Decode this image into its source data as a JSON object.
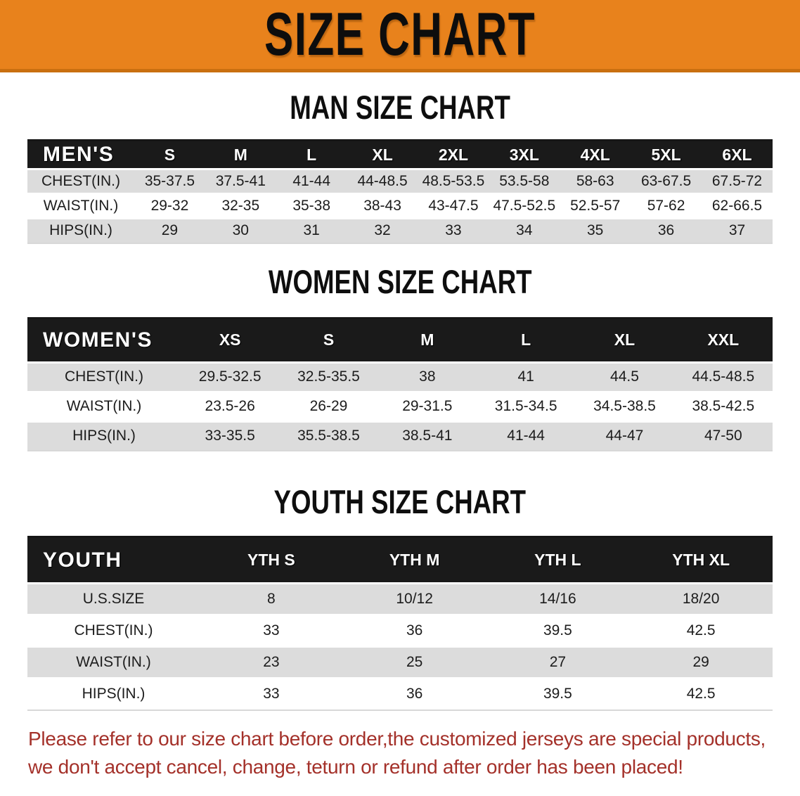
{
  "banner": {
    "title": "SIZE CHART"
  },
  "colors": {
    "banner_bg": "#E8821C",
    "banner_edge": "#C96F10",
    "header_bg": "#1A1A1A",
    "row_gray": "#DCDCDC",
    "text_dark": "#1C1C1C",
    "disclaimer_red": "#A4312A"
  },
  "sections": {
    "men": {
      "heading": "MAN SIZE CHART",
      "table": {
        "label": "MEN'S",
        "sizes": [
          "S",
          "M",
          "L",
          "XL",
          "2XL",
          "3XL",
          "4XL",
          "5XL",
          "6XL"
        ],
        "rows": [
          {
            "label": "CHEST(IN.)",
            "values": [
              "35-37.5",
              "37.5-41",
              "41-44",
              "44-48.5",
              "48.5-53.5",
              "53.5-58",
              "58-63",
              "63-67.5",
              "67.5-72"
            ]
          },
          {
            "label": "WAIST(IN.)",
            "values": [
              "29-32",
              "32-35",
              "35-38",
              "38-43",
              "43-47.5",
              "47.5-52.5",
              "52.5-57",
              "57-62",
              "62-66.5"
            ]
          },
          {
            "label": "HIPS(IN.)",
            "values": [
              "29",
              "30",
              "31",
              "32",
              "33",
              "34",
              "35",
              "36",
              "37"
            ]
          }
        ]
      }
    },
    "women": {
      "heading": "WOMEN SIZE CHART",
      "table": {
        "label": "WOMEN'S",
        "sizes": [
          "XS",
          "S",
          "M",
          "L",
          "XL",
          "XXL"
        ],
        "rows": [
          {
            "label": "CHEST(IN.)",
            "values": [
              "29.5-32.5",
              "32.5-35.5",
              "38",
              "41",
              "44.5",
              "44.5-48.5"
            ]
          },
          {
            "label": "WAIST(IN.)",
            "values": [
              "23.5-26",
              "26-29",
              "29-31.5",
              "31.5-34.5",
              "34.5-38.5",
              "38.5-42.5"
            ]
          },
          {
            "label": "HIPS(IN.)",
            "values": [
              "33-35.5",
              "35.5-38.5",
              "38.5-41",
              "41-44",
              "44-47",
              "47-50"
            ]
          }
        ]
      }
    },
    "youth": {
      "heading": "YOUTH SIZE CHART",
      "table": {
        "label": "YOUTH",
        "sizes": [
          "YTH S",
          "YTH M",
          "YTH L",
          "YTH XL"
        ],
        "rows": [
          {
            "label": "U.S.SIZE",
            "values": [
              "8",
              "10/12",
              "14/16",
              "18/20"
            ]
          },
          {
            "label": "CHEST(IN.)",
            "values": [
              "33",
              "36",
              "39.5",
              "42.5"
            ]
          },
          {
            "label": "WAIST(IN.)",
            "values": [
              "23",
              "25",
              "27",
              "29"
            ]
          },
          {
            "label": "HIPS(IN.)",
            "values": [
              "33",
              "36",
              "39.5",
              "42.5"
            ]
          }
        ]
      }
    }
  },
  "disclaimer": {
    "line1": "Please refer to our size chart before order,the customized jerseys are special products,",
    "line2": "we don't accept cancel, change, teturn or refund after order has been placed!"
  }
}
